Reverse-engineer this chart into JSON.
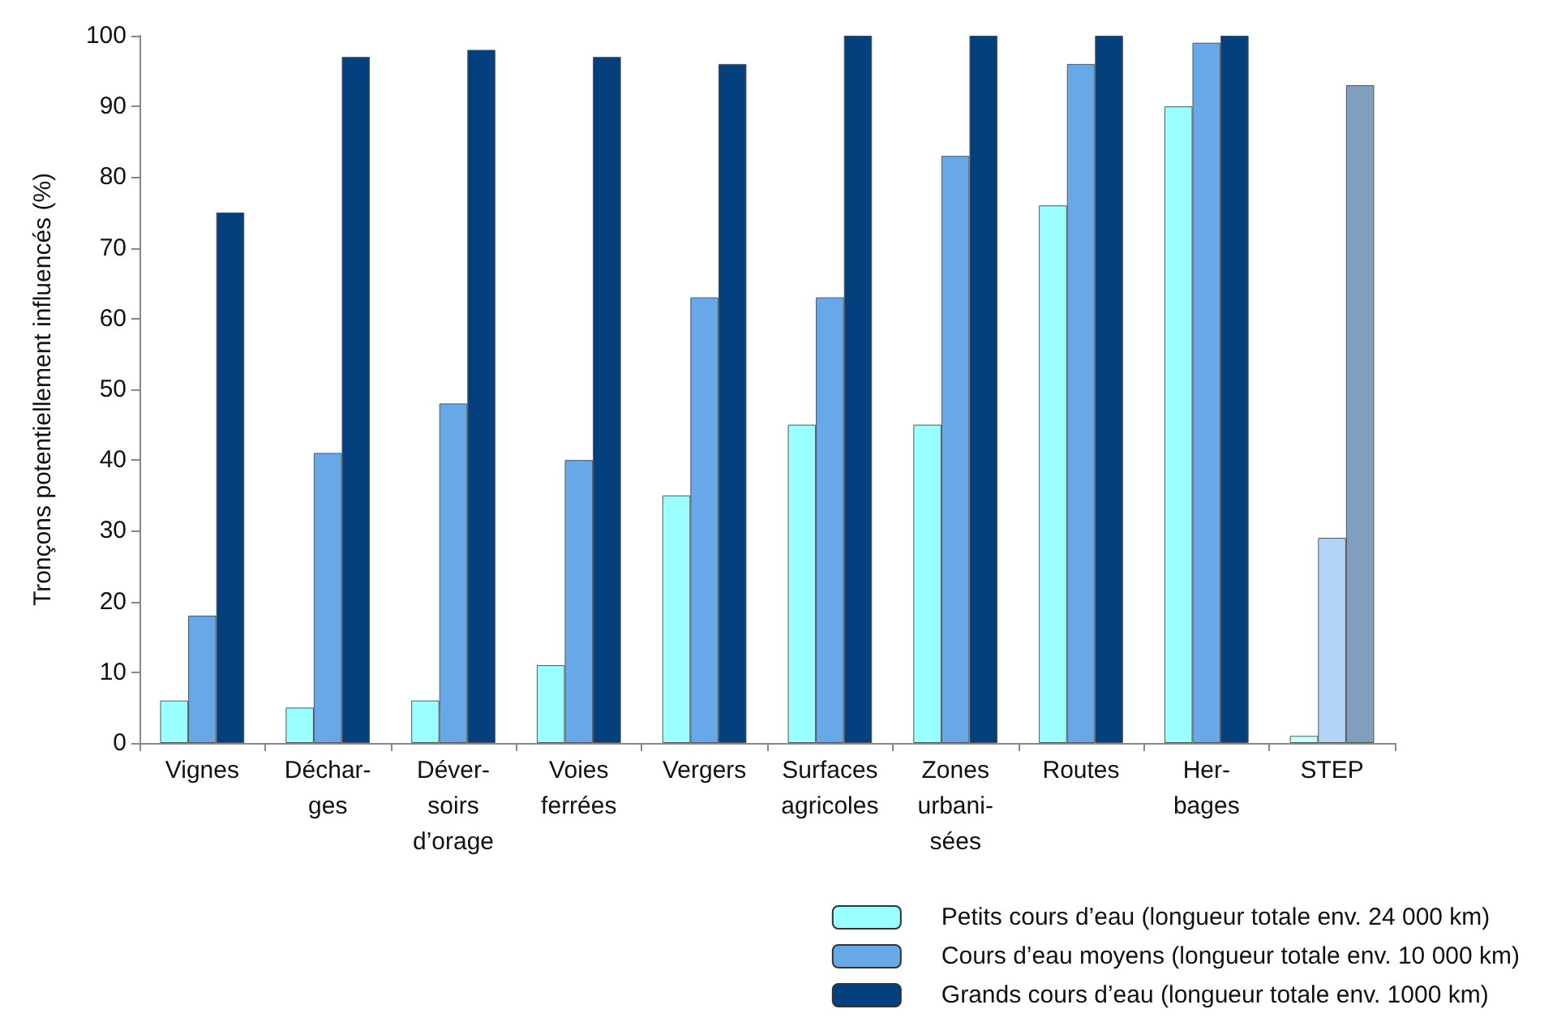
{
  "chart_data": {
    "type": "bar",
    "ylabel": "Tronçons potentiellement influencés (%)",
    "categories": [
      "Vignes",
      "Déchar-\nges",
      "Déver-\nsoirs\nd’orage",
      "Voies\nferrées",
      "Vergers",
      "Surfaces\nagricoles",
      "Zones\nurbani-\nsées",
      "Routes",
      "Her-\nbages",
      "STEP"
    ],
    "series": [
      {
        "name": "Petits cours d’eau (longueur totale env. 24 000 km)",
        "color": "#99ffff",
        "colors": [
          "#99ffff",
          "#99ffff",
          "#99ffff",
          "#99ffff",
          "#99ffff",
          "#99ffff",
          "#99ffff",
          "#99ffff",
          "#99ffff",
          "#ccffff"
        ],
        "values": [
          6,
          5,
          6,
          11,
          35,
          45,
          45,
          76,
          90,
          1
        ]
      },
      {
        "name": "Cours d’eau moyens (longueur totale env. 10 000 km)",
        "color": "#66a8e8",
        "colors": [
          "#66a8e8",
          "#66a8e8",
          "#66a8e8",
          "#66a8e8",
          "#66a8e8",
          "#66a8e8",
          "#66a8e8",
          "#66a8e8",
          "#66a8e8",
          "#b3d4f5"
        ],
        "values": [
          18,
          41,
          48,
          40,
          63,
          63,
          83,
          96,
          99,
          29
        ]
      },
      {
        "name": "Grands cours d’eau (longueur totale env. 1000 km)",
        "color": "#04407e",
        "colors": [
          "#04407e",
          "#04407e",
          "#04407e",
          "#04407e",
          "#04407e",
          "#04407e",
          "#04407e",
          "#04407e",
          "#04407e",
          "#809fbf"
        ],
        "values": [
          75,
          97,
          98,
          97,
          96,
          100,
          100,
          100,
          100,
          93
        ]
      }
    ],
    "ylim": [
      0,
      100
    ],
    "yticks": [
      0,
      10,
      20,
      30,
      40,
      50,
      60,
      70,
      80,
      90,
      100
    ],
    "grid": false,
    "legend": "bottom right"
  }
}
